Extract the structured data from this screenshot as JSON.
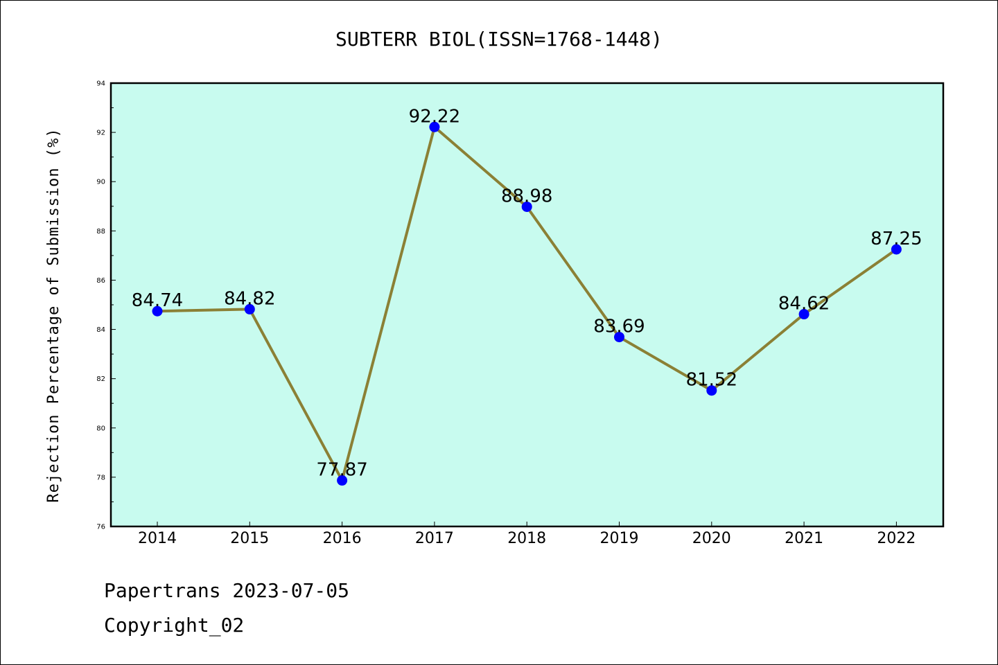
{
  "chart_data": {
    "type": "line",
    "title": "SUBTERR BIOL(ISSN=1768-1448)",
    "ylabel": "Rejection Percentage of Submission (%)",
    "xlabel": "",
    "categories": [
      "2014",
      "2015",
      "2016",
      "2017",
      "2018",
      "2019",
      "2020",
      "2021",
      "2022"
    ],
    "values": [
      84.74,
      84.82,
      77.87,
      92.22,
      88.98,
      83.69,
      81.52,
      84.62,
      87.25
    ],
    "data_labels": [
      "84.74",
      "84.82",
      "77.87",
      "92.22",
      "88.98",
      "83.69",
      "81.52",
      "84.62",
      "87.25"
    ],
    "ylim": [
      76,
      94
    ],
    "yticks": [
      76,
      78,
      80,
      82,
      84,
      86,
      88,
      90,
      92,
      94
    ],
    "grid": false,
    "legend": "none",
    "colors": {
      "plot_background": "#c8fbef",
      "line": "#8b8035",
      "marker": "#0000ff"
    }
  },
  "footer": {
    "line1": "Papertrans 2023-07-05",
    "line2": "Copyright_02"
  }
}
